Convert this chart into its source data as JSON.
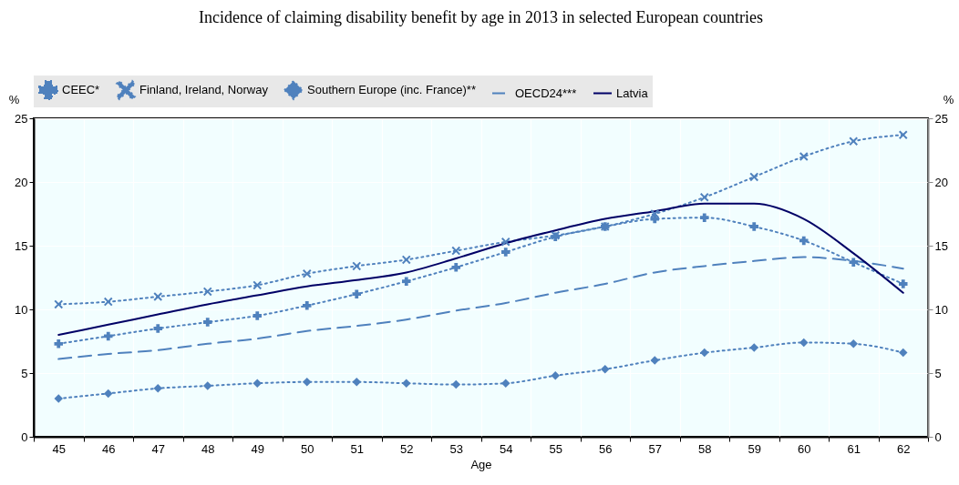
{
  "chart_data": {
    "type": "line",
    "title": "Incidence of claiming disability benefit by age in 2013 in selected European countries",
    "xlabel": "Age",
    "ylabel": "%",
    "y2label": "%",
    "categories": [
      "45",
      "46",
      "47",
      "48",
      "49",
      "50",
      "51",
      "52",
      "53",
      "54",
      "55",
      "56",
      "57",
      "58",
      "59",
      "60",
      "61",
      "62"
    ],
    "series": [
      {
        "name": "CEEC*",
        "color": "#4f81bd",
        "marker": "cross",
        "line_style": "dotted",
        "values": [
          7.3,
          7.9,
          8.5,
          9.0,
          9.5,
          10.3,
          11.2,
          12.2,
          13.3,
          14.5,
          15.7,
          16.5,
          17.1,
          17.2,
          16.5,
          15.4,
          13.7,
          12.0
        ]
      },
      {
        "name": "Finland, Ireland, Norway",
        "color": "#4f81bd",
        "marker": "x",
        "line_style": "dotted",
        "values": [
          10.4,
          10.6,
          11.0,
          11.4,
          11.9,
          12.8,
          13.4,
          13.9,
          14.6,
          15.3,
          15.8,
          16.5,
          17.5,
          18.8,
          20.4,
          22.0,
          23.2,
          23.7
        ]
      },
      {
        "name": "Southern Europe (inc. France)**",
        "color": "#4f81bd",
        "marker": "diamond",
        "line_style": "dotted",
        "values": [
          3.0,
          3.4,
          3.8,
          4.0,
          4.2,
          4.3,
          4.3,
          4.2,
          4.1,
          4.2,
          4.8,
          5.3,
          6.0,
          6.6,
          7.0,
          7.4,
          7.3,
          6.6
        ]
      },
      {
        "name": "OECD24***",
        "color": "#4f81bd",
        "marker": "none",
        "line_style": "dashed",
        "values": [
          6.1,
          6.5,
          6.8,
          7.3,
          7.7,
          8.3,
          8.7,
          9.2,
          9.9,
          10.5,
          11.3,
          12.0,
          12.9,
          13.4,
          13.8,
          14.1,
          13.8,
          13.2
        ]
      },
      {
        "name": "Latvia",
        "color": "#000066",
        "marker": "none",
        "line_style": "solid",
        "values": [
          8.0,
          8.8,
          9.6,
          10.4,
          11.1,
          11.8,
          12.3,
          12.9,
          14.0,
          15.2,
          16.2,
          17.1,
          17.7,
          18.3,
          18.3,
          17.1,
          14.4,
          11.3
        ]
      }
    ],
    "ylim": [
      0,
      25
    ],
    "yticks": [
      0,
      5,
      10,
      15,
      20,
      25
    ],
    "y2lim": [
      0,
      25
    ],
    "y2ticks": [
      0,
      5,
      10,
      15,
      20,
      25
    ],
    "grid": true,
    "legend": "top"
  }
}
